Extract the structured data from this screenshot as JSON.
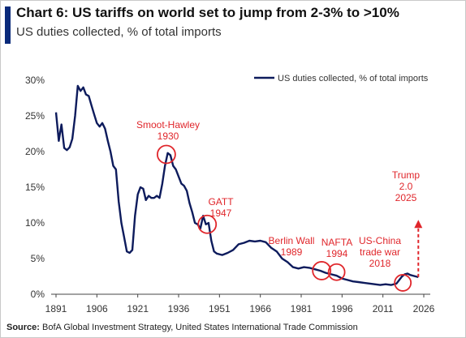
{
  "header": {
    "title": "Chart 6: US tariffs on world set to jump from 2-3% to >10%",
    "subtitle": "US duties collected, % of total imports"
  },
  "footer": {
    "source_label": "Source:",
    "source_text": "BofA Global Investment Strategy, United States International Trade Commission"
  },
  "colors": {
    "line": "#0d1b5c",
    "annotation": "#e0262b",
    "accent": "#0a2a7a"
  },
  "chart_data": {
    "type": "line",
    "xlabel": "",
    "ylabel": "",
    "xlim": [
      1891,
      2030
    ],
    "ylim": [
      0,
      30
    ],
    "x_ticks": [
      1891,
      1906,
      1921,
      1936,
      1951,
      1966,
      1981,
      1996,
      2011,
      2026
    ],
    "y_ticks": [
      0,
      5,
      10,
      15,
      20,
      25,
      30
    ],
    "y_tick_labels": [
      "0%",
      "5%",
      "10%",
      "15%",
      "20%",
      "25%",
      "30%"
    ],
    "grid": false,
    "legend_position": "top-right",
    "series": [
      {
        "name": "US duties collected, % of total imports",
        "x": [
          1891,
          1892,
          1893,
          1894,
          1895,
          1896,
          1897,
          1898,
          1899,
          1900,
          1901,
          1902,
          1903,
          1904,
          1905,
          1906,
          1907,
          1908,
          1909,
          1910,
          1911,
          1912,
          1913,
          1914,
          1915,
          1916,
          1917,
          1918,
          1919,
          1920,
          1921,
          1922,
          1923,
          1924,
          1925,
          1926,
          1927,
          1928,
          1929,
          1930,
          1931,
          1932,
          1933,
          1934,
          1935,
          1936,
          1937,
          1938,
          1939,
          1940,
          1941,
          1942,
          1943,
          1944,
          1945,
          1946,
          1947,
          1948,
          1949,
          1950,
          1952,
          1954,
          1956,
          1958,
          1960,
          1962,
          1964,
          1966,
          1968,
          1970,
          1972,
          1974,
          1976,
          1978,
          1980,
          1982,
          1984,
          1986,
          1988,
          1990,
          1992,
          1994,
          1996,
          1998,
          2000,
          2002,
          2004,
          2006,
          2008,
          2010,
          2012,
          2014,
          2016,
          2018,
          2019,
          2020,
          2021,
          2022,
          2023,
          2024
        ],
        "values": [
          25.5,
          21.5,
          23.8,
          20.5,
          20.2,
          20.6,
          21.8,
          25,
          29.2,
          28.5,
          29,
          28,
          27.8,
          26.5,
          25.2,
          24,
          23.5,
          24,
          23.2,
          21.5,
          20,
          18,
          17.5,
          13,
          10,
          8,
          6,
          5.8,
          6.2,
          11,
          14,
          15,
          14.8,
          13.2,
          13.8,
          13.5,
          13.5,
          13.8,
          13.5,
          15.5,
          18,
          19.8,
          19.5,
          18,
          17.5,
          16.5,
          15.5,
          15.2,
          14.5,
          12.8,
          11.5,
          10,
          9.8,
          9.2,
          11,
          9.8,
          10,
          7.5,
          6,
          5.7,
          5.5,
          5.8,
          6.2,
          7,
          7.2,
          7.5,
          7.4,
          7.5,
          7.3,
          6.5,
          6,
          5,
          4.5,
          3.8,
          3.6,
          3.8,
          3.7,
          3.5,
          3.3,
          3,
          2.8,
          2.6,
          2.2,
          2,
          1.8,
          1.7,
          1.6,
          1.5,
          1.4,
          1.3,
          1.4,
          1.3,
          1.5,
          2.5,
          2.8,
          2.9,
          2.7,
          2.6,
          2.5,
          2.4
        ]
      }
    ],
    "projection": {
      "x": [
        2024,
        2024
      ],
      "values": [
        2.4,
        10.2
      ]
    },
    "annotations": [
      {
        "text": [
          "Smoot-Hawley",
          "1930"
        ],
        "x": 1931.5,
        "y": 19.6
      },
      {
        "text": [
          "GATT",
          "1947"
        ],
        "x": 1946.5,
        "y": 9.8
      },
      {
        "text": [
          "Berlin Wall",
          "1989"
        ],
        "x": 1988.5,
        "y": 3.3
      },
      {
        "text": [
          "NAFTA",
          "1994"
        ],
        "x": 1994,
        "y": 3.1
      },
      {
        "text": [
          "US-China",
          "trade war",
          "2018"
        ],
        "x": 2018.3,
        "y": 1.6
      },
      {
        "text": [
          "Trump",
          "2.0",
          "2025"
        ],
        "x": 2024,
        "y": 12
      }
    ]
  }
}
